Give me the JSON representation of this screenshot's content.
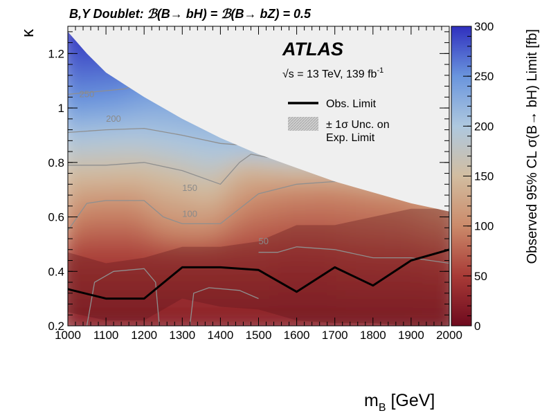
{
  "chart_data": {
    "type": "heatmap",
    "title": "B,Y Doublet:   ℬ(B→ bH) = ℬ(B→ bZ) = 0.5",
    "experiment": "ATLAS",
    "energy_label": "√s = 13 TeV, 139 fb",
    "energy_superscript": "-1",
    "xlabel_main": "m",
    "xlabel_sub": "B",
    "xlabel_unit": " [GeV]",
    "ylabel": "κ",
    "zlabel": "Observed 95% CL σ(B→ bH) Limit [fb]",
    "xlim": [
      1000,
      2000
    ],
    "ylim": [
      0.2,
      1.3
    ],
    "zlim": [
      0,
      300
    ],
    "xticks": [
      1000,
      1100,
      1200,
      1300,
      1400,
      1500,
      1600,
      1700,
      1800,
      1900,
      2000
    ],
    "xtick_labels": [
      "1000",
      "1100",
      "1200",
      "1300",
      "1400",
      "1500",
      "1600",
      "1700",
      "1800",
      "1900",
      "2000"
    ],
    "yticks": [
      0.2,
      0.4,
      0.6,
      0.8,
      1.0,
      1.2
    ],
    "ytick_labels": [
      "0.2",
      "0.4",
      "0.6",
      "0.8",
      "1",
      "1.2"
    ],
    "zticks": [
      0,
      50,
      100,
      150,
      200,
      250,
      300
    ],
    "ztick_labels": [
      "0",
      "50",
      "100",
      "150",
      "200",
      "250",
      "300"
    ],
    "colorscale": [
      "#6e0a1e",
      "#a83a36",
      "#cb8a6a",
      "#d2bda0",
      "#aec8df",
      "#6a95dd",
      "#2f2fbe"
    ],
    "legend": {
      "placement": "top-right",
      "entries": [
        {
          "label": "Obs. Limit",
          "kind": "line",
          "color": "#000000"
        },
        {
          "label": "± 1σ Unc. on",
          "label2": "Exp. Limit",
          "kind": "band",
          "color": "#8c8c8c"
        }
      ]
    },
    "observed_limit": {
      "name": "Obs. Limit",
      "x": [
        1000,
        1100,
        1200,
        1300,
        1400,
        1500,
        1600,
        1700,
        1800,
        1900,
        2000
      ],
      "y": [
        0.335,
        0.3,
        0.3,
        0.415,
        0.415,
        0.405,
        0.325,
        0.415,
        0.348,
        0.44,
        0.48
      ]
    },
    "expected_band": {
      "name": "± 1σ Unc. on Exp. Limit",
      "x": [
        1000,
        1100,
        1200,
        1300,
        1400,
        1500,
        1600,
        1700,
        1800,
        1900,
        2000
      ],
      "upper": [
        0.47,
        0.43,
        0.45,
        0.49,
        0.49,
        0.51,
        0.57,
        0.57,
        0.6,
        0.63,
        0.63
      ],
      "lower": [
        0.25,
        0.22,
        0.22,
        0.3,
        0.27,
        0.26,
        0.22,
        0.21,
        0.21,
        0.2,
        0.2
      ]
    },
    "excluded_region_boundary": {
      "x": [
        1000,
        1050,
        1100,
        1200,
        1300,
        1400,
        1500,
        1600,
        1700,
        1800,
        1900,
        2000
      ],
      "y": [
        1.28,
        1.2,
        1.13,
        1.04,
        0.96,
        0.89,
        0.83,
        0.78,
        0.73,
        0.69,
        0.65,
        0.62
      ]
    },
    "contours": [
      {
        "level": 250,
        "label": "250",
        "label_at": [
          1030,
          1.04
        ],
        "x": [
          1000,
          1150,
          1260
        ],
        "y": [
          1.05,
          1.07,
          1.13
        ]
      },
      {
        "level": 200,
        "label": "200",
        "label_at": [
          1100,
          0.95
        ],
        "x": [
          1000,
          1100,
          1200,
          1300,
          1400,
          1490
        ],
        "y": [
          0.91,
          0.92,
          0.925,
          0.9,
          0.87,
          0.86
        ]
      },
      {
        "level": 150,
        "label": "150",
        "label_at": [
          1300,
          0.695
        ],
        "x": [
          1000,
          1100,
          1200,
          1300,
          1400,
          1450,
          1480,
          1600,
          1750,
          1850,
          2000
        ],
        "y": [
          0.79,
          0.79,
          0.8,
          0.77,
          0.72,
          0.8,
          0.83,
          0.8,
          0.79,
          0.76,
          0.79
        ]
      },
      {
        "level": 100,
        "label": "100",
        "label_at": [
          1300,
          0.6
        ],
        "x": [
          1000,
          1050,
          1100,
          1200,
          1250,
          1300,
          1400,
          1500,
          1600,
          1700,
          1800,
          1900,
          2000
        ],
        "y": [
          0.55,
          0.65,
          0.66,
          0.66,
          0.6,
          0.575,
          0.575,
          0.685,
          0.72,
          0.73,
          0.72,
          0.7,
          0.63
        ]
      },
      {
        "level": 50,
        "label": "50",
        "label_at": [
          1500,
          0.5
        ],
        "x": [
          1500,
          1550,
          1600,
          1700,
          1800,
          1900,
          2000
        ],
        "y": [
          0.47,
          0.47,
          0.49,
          0.48,
          0.45,
          0.45,
          0.43
        ]
      },
      {
        "level": 50,
        "label": "",
        "x": [
          1050,
          1070,
          1120,
          1200,
          1230,
          1240
        ],
        "y": [
          0.2,
          0.36,
          0.4,
          0.41,
          0.36,
          0.2
        ]
      },
      {
        "level": 50,
        "label": "",
        "x": [
          1320,
          1330,
          1370,
          1450,
          1500
        ],
        "y": [
          0.2,
          0.32,
          0.34,
          0.33,
          0.3
        ]
      }
    ]
  }
}
